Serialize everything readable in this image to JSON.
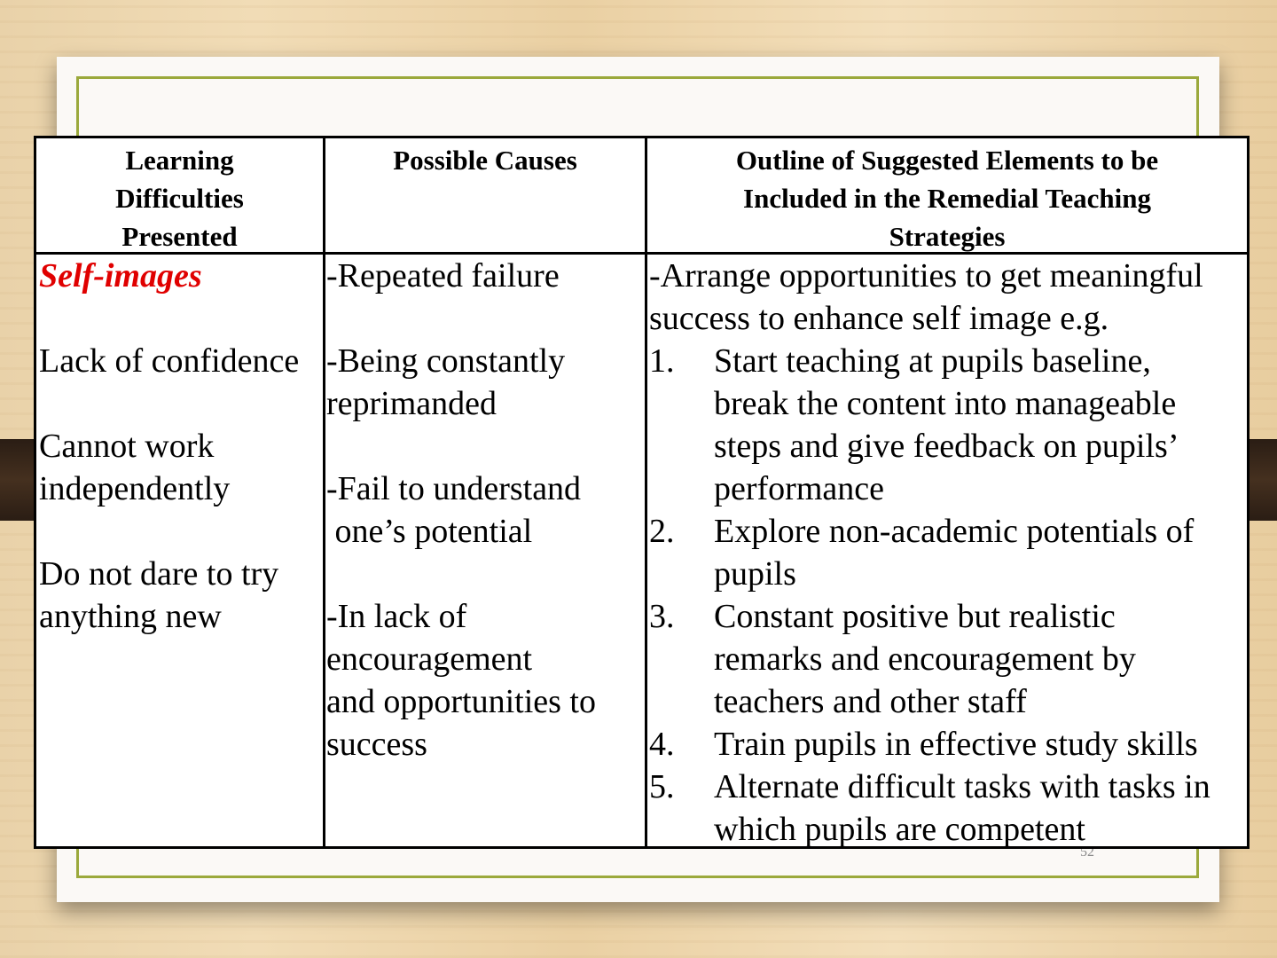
{
  "slide": {
    "page_number": "52"
  },
  "table": {
    "headers": [
      [
        "Learning",
        "Difficulties",
        "Presented"
      ],
      [
        "Possible Causes"
      ],
      [
        "Outline of Suggested Elements to be",
        "Included in the Remedial Teaching",
        "Strategies"
      ]
    ],
    "difficulties": {
      "heading": "Self-images",
      "lines": [
        "Lack of confidence",
        "Cannot work",
        "independently",
        "Do not dare to try",
        "anything new"
      ]
    },
    "causes": {
      "lines": [
        "-Repeated failure",
        "-Being constantly",
        "reprimanded",
        "-Fail to understand",
        " one’s potential",
        "-In lack of",
        "encouragement",
        "and opportunities to",
        "success"
      ]
    },
    "strategies": {
      "intro": [
        "-Arrange opportunities to get meaningful",
        "success to enhance self image e.g."
      ],
      "items": [
        {
          "num": "1.",
          "lines": [
            "Start teaching at pupils baseline,",
            "break the content into manageable",
            "steps and give feedback on pupils’",
            "performance"
          ]
        },
        {
          "num": "2.",
          "lines": [
            "Explore non-academic potentials of",
            "pupils"
          ]
        },
        {
          "num": "3.",
          "lines": [
            "Constant positive but realistic",
            "remarks and encouragement by",
            "teachers and other staff"
          ]
        },
        {
          "num": "4.",
          "lines": [
            "Train pupils in effective study skills"
          ]
        },
        {
          "num": "5.",
          "lines": [
            "Alternate difficult tasks with tasks in",
            "which pupils are competent"
          ]
        }
      ]
    }
  }
}
